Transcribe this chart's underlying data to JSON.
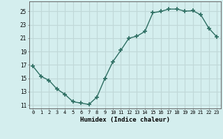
{
  "x": [
    0,
    1,
    2,
    3,
    4,
    5,
    6,
    7,
    8,
    9,
    10,
    11,
    12,
    13,
    14,
    15,
    16,
    17,
    18,
    19,
    20,
    21,
    22,
    23
  ],
  "y": [
    16.8,
    15.3,
    14.7,
    13.4,
    12.6,
    11.5,
    11.3,
    11.1,
    12.2,
    15.0,
    17.5,
    19.2,
    21.0,
    21.3,
    22.0,
    24.8,
    25.0,
    25.35,
    25.35,
    25.05,
    25.1,
    24.5,
    22.5,
    21.2
  ],
  "xlabel": "Humidex (Indice chaleur)",
  "ylim": [
    10.5,
    26.5
  ],
  "xlim": [
    -0.5,
    23.5
  ],
  "yticks": [
    11,
    13,
    15,
    17,
    19,
    21,
    23,
    25
  ],
  "xticks": [
    0,
    1,
    2,
    3,
    4,
    5,
    6,
    7,
    8,
    9,
    10,
    11,
    12,
    13,
    14,
    15,
    16,
    17,
    18,
    19,
    20,
    21,
    22,
    23
  ],
  "xtick_labels": [
    "0",
    "1",
    "2",
    "3",
    "4",
    "5",
    "6",
    "7",
    "8",
    "9",
    "10",
    "11",
    "12",
    "13",
    "14",
    "15",
    "16",
    "17",
    "18",
    "19",
    "20",
    "21",
    "22",
    "23"
  ],
  "line_color": "#2d6e62",
  "marker_color": "#2d6e62",
  "bg_color": "#d4eeee",
  "grid_color": "#c0d8d8",
  "title": ""
}
